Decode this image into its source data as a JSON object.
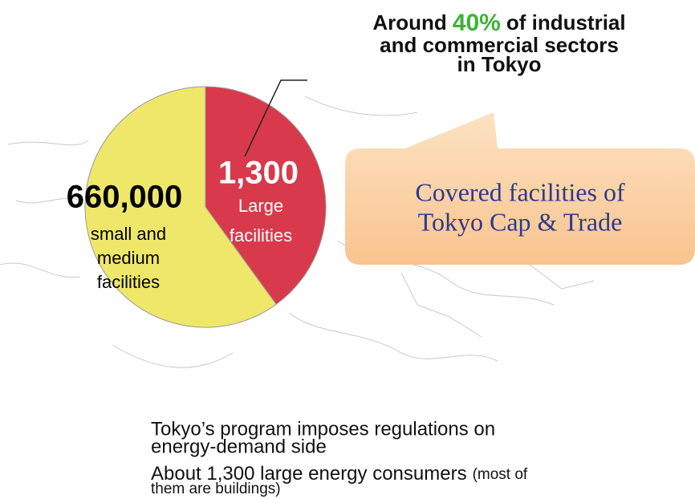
{
  "chart_data": {
    "type": "pie",
    "values": [
      40,
      60
    ],
    "colors": [
      "#d93a4b",
      "#efe76a"
    ],
    "slice_labels": [
      {
        "value_text": "1,300",
        "lines": [
          "Large",
          "facilities"
        ]
      },
      {
        "value_text": "660,000",
        "lines": [
          "small and",
          "medium",
          "facilities"
        ]
      }
    ],
    "annotation": {
      "line1": [
        "Around",
        "40%",
        "of industrial"
      ],
      "line2": "and commercial sectors",
      "line3": "in Tokyo"
    },
    "callout": [
      "Covered facilities of",
      "Tokyo Cap & Trade"
    ],
    "bullets": [
      {
        "lines": [
          "Tokyo’s program imposes regulations on",
          "energy-demand side"
        ]
      },
      {
        "text": "About 1,300 large energy consumers",
        "note": "(most of",
        "note2": "them are buildings)"
      }
    ]
  }
}
